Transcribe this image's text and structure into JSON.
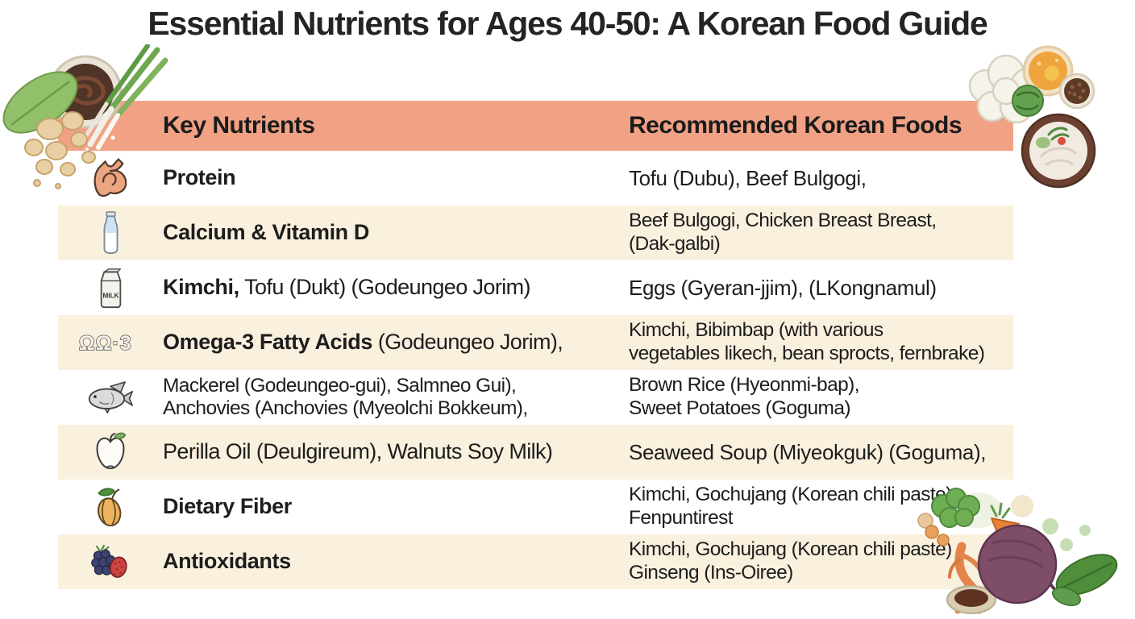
{
  "title": "Essential Nutrients for Ages 40-50: A Korean Food Guide",
  "colors": {
    "page_bg": "#FFFFFF",
    "header_band": "#F2A284",
    "row_alt": "#FAF0DE",
    "text": "#1D1D1D"
  },
  "table": {
    "header": {
      "nutrients": "Key Nutrients",
      "foods": "Recommended Korean Foods"
    },
    "rows": [
      {
        "icon": "bicep-icon",
        "nutrient_lines": [
          [
            {
              "b": 1,
              "t": "Protein"
            }
          ]
        ],
        "food_lines": [
          "Tofu (Dubu), Beef Bulgogi,"
        ]
      },
      {
        "icon": "milk-bottle-icon",
        "nutrient_lines": [
          [
            {
              "b": 1,
              "t": "Calcium & Vitamin D"
            }
          ]
        ],
        "food_lines": [
          "Beef Bulgogi, Chicken Breast Breast,",
          "(Dak-galbi)"
        ]
      },
      {
        "icon": "milk-carton-icon",
        "nutrient_lines": [
          [
            {
              "b": 1,
              "t": "Kimchi,"
            },
            {
              "b": 0,
              "t": " Tofu (Dukt) (Godeungeo Jorim)"
            }
          ]
        ],
        "food_lines": [
          "Eggs (Gyeran-jjim), (LKongnamul)"
        ]
      },
      {
        "icon": "omega3-icon",
        "nutrient_lines": [
          [
            {
              "b": 1,
              "t": "Omega-3 Fatty Acids"
            },
            {
              "b": 0,
              "t": " (Godeungeo Jorim),"
            }
          ]
        ],
        "food_lines": [
          "Kimchi, Bibimbap (with various",
          "vegetables likech, bean sprocts, fernbrake)"
        ]
      },
      {
        "icon": "fish-icon",
        "nutrient_lines": [
          [
            {
              "b": 0,
              "t": "Mackerel (Godeungeo-gui), Salmneo Gui),"
            }
          ],
          [
            {
              "b": 0,
              "t": "Anchovies (Anchovies (Myeolchi Bokkeum),"
            }
          ]
        ],
        "food_lines": [
          "Brown Rice (Hyeonmi-bap),",
          "Sweet Potatoes (Goguma)"
        ]
      },
      {
        "icon": "apple-icon",
        "nutrient_lines": [
          [
            {
              "b": 0,
              "t": "Perilla Oil (Deulgireum), Walnuts Soy Milk)"
            }
          ]
        ],
        "food_lines": [
          "Seaweed Soup (Miyeokguk) (Goguma),"
        ]
      },
      {
        "icon": "fiber-pod-icon",
        "nutrient_lines": [
          [
            {
              "b": 1,
              "t": "Dietary Fiber"
            }
          ]
        ],
        "food_lines": [
          "Kimchi, Gochujang (Korean chili paste)",
          "Fenpuntirest"
        ]
      },
      {
        "icon": "berries-icon",
        "nutrient_lines": [
          [
            {
              "b": 1,
              "t": "Antioxidants"
            }
          ]
        ],
        "food_lines": [
          "Kimchi, Gochujang (Korean chili paste)",
          "Ginseng (Ins-Oiree)"
        ]
      }
    ]
  },
  "icons": {
    "milk_carton_label": "MILK",
    "omega3_glyph": "ΩΩ·3"
  }
}
